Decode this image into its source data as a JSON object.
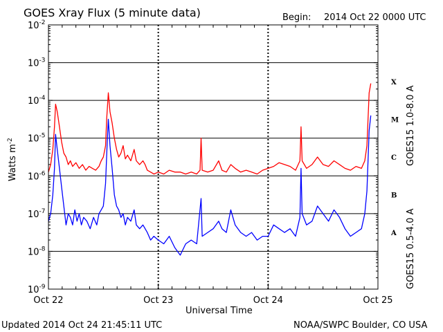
{
  "header": {
    "title": "GOES Xray Flux (5 minute data)",
    "begin_label": "Begin:",
    "begin_value": "2014 Oct 22 0000 UTC"
  },
  "footer": {
    "updated": "Updated 2014 Oct 24 21:45:11 UTC",
    "source": "NOAA/SWPC Boulder, CO USA"
  },
  "chart_data": {
    "type": "line",
    "title": "GOES Xray Flux (5 minute data)",
    "xlabel": "Universal Time",
    "ylabel_base": "Watts m",
    "ylabel_exp": "-2",
    "yscale": "log",
    "ylim": [
      1e-09,
      0.01
    ],
    "xlim_days": [
      0,
      3
    ],
    "x_ticks": [
      {
        "day": 0,
        "label": "Oct 22"
      },
      {
        "day": 1,
        "label": "Oct 23"
      },
      {
        "day": 2,
        "label": "Oct 24"
      },
      {
        "day": 3,
        "label": "Oct 25"
      }
    ],
    "y_ticks": [
      {
        "exp": -9,
        "base": "10",
        "sup": "-9"
      },
      {
        "exp": -8,
        "base": "10",
        "sup": "-8"
      },
      {
        "exp": -7,
        "base": "10",
        "sup": "-7"
      },
      {
        "exp": -6,
        "base": "10",
        "sup": "-6"
      },
      {
        "exp": -5,
        "base": "10",
        "sup": "-5"
      },
      {
        "exp": -4,
        "base": "10",
        "sup": "-4"
      },
      {
        "exp": -3,
        "base": "10",
        "sup": "-3"
      },
      {
        "exp": -2,
        "base": "10",
        "sup": "-2"
      }
    ],
    "flare_classes": [
      {
        "label": "X",
        "exp": -3.5
      },
      {
        "label": "M",
        "exp": -4.5
      },
      {
        "label": "C",
        "exp": -5.5
      },
      {
        "label": "B",
        "exp": -6.5
      },
      {
        "label": "A",
        "exp": -7.5
      }
    ],
    "grid": "horizontal decades -8 to -3, dotted vertical at day boundaries",
    "series": [
      {
        "name": "GOES15 1.0-8.0 A",
        "color": "#ff0000",
        "points": [
          [
            0.0,
            -5.9
          ],
          [
            0.02,
            -5.7
          ],
          [
            0.04,
            -5.3
          ],
          [
            0.055,
            -4.7
          ],
          [
            0.065,
            -4.1
          ],
          [
            0.08,
            -4.3
          ],
          [
            0.1,
            -4.7
          ],
          [
            0.12,
            -5.1
          ],
          [
            0.14,
            -5.4
          ],
          [
            0.16,
            -5.5
          ],
          [
            0.18,
            -5.7
          ],
          [
            0.2,
            -5.6
          ],
          [
            0.22,
            -5.75
          ],
          [
            0.25,
            -5.65
          ],
          [
            0.28,
            -5.8
          ],
          [
            0.31,
            -5.7
          ],
          [
            0.34,
            -5.85
          ],
          [
            0.37,
            -5.75
          ],
          [
            0.4,
            -5.8
          ],
          [
            0.43,
            -5.85
          ],
          [
            0.46,
            -5.75
          ],
          [
            0.48,
            -5.6
          ],
          [
            0.5,
            -5.5
          ],
          [
            0.52,
            -5.2
          ],
          [
            0.53,
            -4.5
          ],
          [
            0.545,
            -3.8
          ],
          [
            0.56,
            -4.3
          ],
          [
            0.58,
            -4.6
          ],
          [
            0.6,
            -5.0
          ],
          [
            0.62,
            -5.3
          ],
          [
            0.64,
            -5.5
          ],
          [
            0.66,
            -5.4
          ],
          [
            0.68,
            -5.2
          ],
          [
            0.7,
            -5.55
          ],
          [
            0.72,
            -5.45
          ],
          [
            0.75,
            -5.6
          ],
          [
            0.78,
            -5.3
          ],
          [
            0.8,
            -5.6
          ],
          [
            0.83,
            -5.7
          ],
          [
            0.86,
            -5.6
          ],
          [
            0.88,
            -5.7
          ],
          [
            0.9,
            -5.85
          ],
          [
            0.93,
            -5.9
          ],
          [
            0.96,
            -5.95
          ],
          [
            1.0,
            -5.9
          ],
          [
            1.05,
            -5.95
          ],
          [
            1.1,
            -5.85
          ],
          [
            1.15,
            -5.9
          ],
          [
            1.2,
            -5.9
          ],
          [
            1.25,
            -5.95
          ],
          [
            1.3,
            -5.9
          ],
          [
            1.35,
            -5.95
          ],
          [
            1.38,
            -5.85
          ],
          [
            1.39,
            -5.0
          ],
          [
            1.4,
            -5.85
          ],
          [
            1.45,
            -5.9
          ],
          [
            1.5,
            -5.85
          ],
          [
            1.55,
            -5.6
          ],
          [
            1.58,
            -5.85
          ],
          [
            1.62,
            -5.9
          ],
          [
            1.66,
            -5.7
          ],
          [
            1.7,
            -5.8
          ],
          [
            1.75,
            -5.9
          ],
          [
            1.8,
            -5.85
          ],
          [
            1.85,
            -5.9
          ],
          [
            1.9,
            -5.95
          ],
          [
            1.95,
            -5.85
          ],
          [
            2.0,
            -5.8
          ],
          [
            2.05,
            -5.75
          ],
          [
            2.1,
            -5.65
          ],
          [
            2.15,
            -5.7
          ],
          [
            2.2,
            -5.75
          ],
          [
            2.25,
            -5.85
          ],
          [
            2.29,
            -5.6
          ],
          [
            2.3,
            -4.7
          ],
          [
            2.31,
            -5.6
          ],
          [
            2.35,
            -5.8
          ],
          [
            2.4,
            -5.7
          ],
          [
            2.45,
            -5.5
          ],
          [
            2.5,
            -5.7
          ],
          [
            2.55,
            -5.75
          ],
          [
            2.6,
            -5.6
          ],
          [
            2.65,
            -5.7
          ],
          [
            2.7,
            -5.8
          ],
          [
            2.75,
            -5.85
          ],
          [
            2.8,
            -5.75
          ],
          [
            2.85,
            -5.8
          ],
          [
            2.88,
            -5.6
          ],
          [
            2.9,
            -5.2
          ],
          [
            2.91,
            -4.5
          ],
          [
            2.92,
            -3.8
          ],
          [
            2.935,
            -3.55
          ]
        ]
      },
      {
        "name": "GOES15 0.5-4.0 A",
        "color": "#0000ff",
        "points": [
          [
            0.0,
            -7.2
          ],
          [
            0.02,
            -7.0
          ],
          [
            0.04,
            -6.5
          ],
          [
            0.055,
            -5.8
          ],
          [
            0.065,
            -4.9
          ],
          [
            0.08,
            -5.3
          ],
          [
            0.1,
            -5.8
          ],
          [
            0.12,
            -6.3
          ],
          [
            0.14,
            -6.8
          ],
          [
            0.16,
            -7.3
          ],
          [
            0.18,
            -7.0
          ],
          [
            0.2,
            -7.1
          ],
          [
            0.22,
            -7.3
          ],
          [
            0.24,
            -6.9
          ],
          [
            0.26,
            -7.2
          ],
          [
            0.28,
            -7.0
          ],
          [
            0.3,
            -7.3
          ],
          [
            0.32,
            -7.1
          ],
          [
            0.35,
            -7.2
          ],
          [
            0.38,
            -7.4
          ],
          [
            0.41,
            -7.1
          ],
          [
            0.44,
            -7.3
          ],
          [
            0.46,
            -7.0
          ],
          [
            0.48,
            -6.9
          ],
          [
            0.5,
            -6.8
          ],
          [
            0.52,
            -6.2
          ],
          [
            0.535,
            -5.1
          ],
          [
            0.545,
            -4.5
          ],
          [
            0.56,
            -5.2
          ],
          [
            0.58,
            -5.8
          ],
          [
            0.6,
            -6.5
          ],
          [
            0.62,
            -6.8
          ],
          [
            0.64,
            -6.9
          ],
          [
            0.66,
            -7.1
          ],
          [
            0.68,
            -7.0
          ],
          [
            0.7,
            -7.3
          ],
          [
            0.72,
            -7.1
          ],
          [
            0.75,
            -7.2
          ],
          [
            0.78,
            -6.9
          ],
          [
            0.8,
            -7.3
          ],
          [
            0.83,
            -7.4
          ],
          [
            0.86,
            -7.3
          ],
          [
            0.9,
            -7.5
          ],
          [
            0.93,
            -7.7
          ],
          [
            0.96,
            -7.6
          ],
          [
            1.0,
            -7.7
          ],
          [
            1.05,
            -7.8
          ],
          [
            1.1,
            -7.6
          ],
          [
            1.15,
            -7.9
          ],
          [
            1.2,
            -8.1
          ],
          [
            1.25,
            -7.8
          ],
          [
            1.3,
            -7.7
          ],
          [
            1.35,
            -7.8
          ],
          [
            1.39,
            -6.6
          ],
          [
            1.4,
            -7.6
          ],
          [
            1.45,
            -7.5
          ],
          [
            1.5,
            -7.4
          ],
          [
            1.55,
            -7.2
          ],
          [
            1.58,
            -7.4
          ],
          [
            1.62,
            -7.5
          ],
          [
            1.66,
            -6.9
          ],
          [
            1.7,
            -7.3
          ],
          [
            1.75,
            -7.5
          ],
          [
            1.8,
            -7.6
          ],
          [
            1.85,
            -7.5
          ],
          [
            1.9,
            -7.7
          ],
          [
            1.95,
            -7.6
          ],
          [
            2.0,
            -7.6
          ],
          [
            2.05,
            -7.3
          ],
          [
            2.1,
            -7.4
          ],
          [
            2.15,
            -7.5
          ],
          [
            2.2,
            -7.4
          ],
          [
            2.25,
            -7.6
          ],
          [
            2.29,
            -7.1
          ],
          [
            2.3,
            -5.8
          ],
          [
            2.31,
            -7.0
          ],
          [
            2.35,
            -7.3
          ],
          [
            2.4,
            -7.2
          ],
          [
            2.45,
            -6.8
          ],
          [
            2.5,
            -7.0
          ],
          [
            2.55,
            -7.2
          ],
          [
            2.6,
            -6.9
          ],
          [
            2.65,
            -7.1
          ],
          [
            2.7,
            -7.4
          ],
          [
            2.75,
            -7.6
          ],
          [
            2.8,
            -7.5
          ],
          [
            2.85,
            -7.4
          ],
          [
            2.88,
            -7.0
          ],
          [
            2.9,
            -6.4
          ],
          [
            2.91,
            -5.6
          ],
          [
            2.92,
            -4.8
          ],
          [
            2.935,
            -4.4
          ]
        ]
      }
    ]
  }
}
